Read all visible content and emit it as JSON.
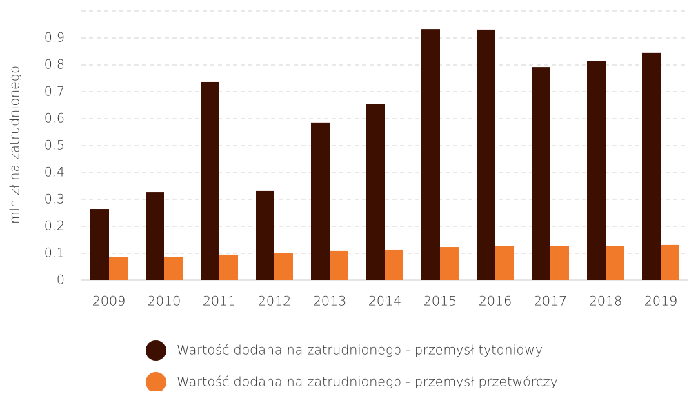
{
  "chart_data": {
    "type": "bar",
    "y_label": "mln zł na zatrudnionego",
    "categories": [
      "2009",
      "2010",
      "2011",
      "2012",
      "2013",
      "2014",
      "2015",
      "2016",
      "2017",
      "2018",
      "2019"
    ],
    "series": [
      {
        "name": "Wartość dodana na zatrudnionego - przemysł tytoniowy",
        "color": "#3d0f00",
        "values": [
          0.264,
          0.328,
          0.736,
          0.331,
          0.585,
          0.656,
          0.933,
          0.931,
          0.792,
          0.813,
          0.844
        ]
      },
      {
        "name": "Wartość dodana na zatrudnionego - przemysł przetwórczy",
        "color": "#f07a2a",
        "values": [
          0.087,
          0.085,
          0.095,
          0.1,
          0.108,
          0.113,
          0.123,
          0.126,
          0.126,
          0.126,
          0.131
        ]
      }
    ],
    "ylim": [
      0,
      1
    ],
    "yticks": [
      0,
      {
        "value": 0.1,
        "label": "0,1"
      },
      {
        "value": 0.2,
        "label": "0,2"
      },
      {
        "value": 0.3,
        "label": "0,3"
      },
      {
        "value": 0.4,
        "label": "0,4"
      },
      {
        "value": 0.5,
        "label": "0,5"
      },
      {
        "value": 0.6,
        "label": "0,6"
      },
      {
        "value": 0.7,
        "label": "0,7"
      },
      {
        "value": 0.8,
        "label": "0,8"
      },
      {
        "value": 0.9,
        "label": "0,9"
      }
    ],
    "grid": true,
    "legend": "bottom"
  }
}
